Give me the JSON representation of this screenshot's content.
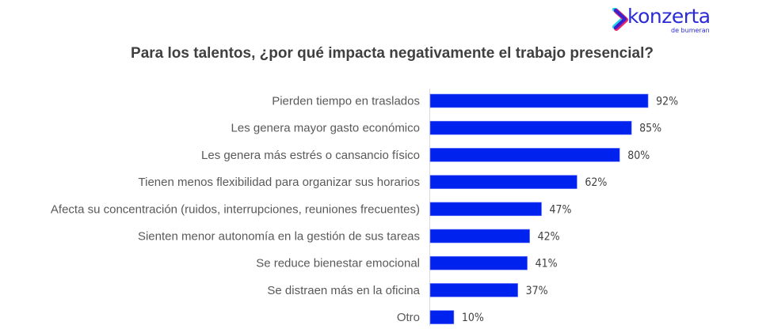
{
  "logo": {
    "name": "konzerta",
    "subtitle": "de bumeran",
    "colors": {
      "primary": "#2b2bd6",
      "accent_cyan": "#24d3e6",
      "accent_magenta": "#e6246e"
    }
  },
  "chart_data": {
    "type": "bar",
    "orientation": "horizontal",
    "title": "Para los talentos, ¿por qué impacta negativamente el trabajo presencial?",
    "xlabel": "",
    "ylabel": "",
    "categories": [
      "Pierden tiempo en traslados",
      "Les genera mayor gasto económico",
      "Les genera más estrés o cansancio físico",
      "Tienen menos flexibilidad para organizar sus horarios",
      "Afecta su concentración (ruidos, interrupciones, reuniones frecuentes)",
      "Sienten menor autonomía en la gestión de sus tareas",
      "Se reduce bienestar emocional",
      "Se distraen más en la oficina",
      "Otro"
    ],
    "values": [
      92,
      85,
      80,
      62,
      47,
      42,
      41,
      37,
      10
    ],
    "value_labels": [
      "92%",
      "85%",
      "80%",
      "62%",
      "47%",
      "42%",
      "41%",
      "37%",
      "10%"
    ],
    "unit": "%",
    "xlim": [
      0,
      100
    ],
    "grid": false,
    "legend": "none",
    "bar_color": "#0022ee"
  }
}
